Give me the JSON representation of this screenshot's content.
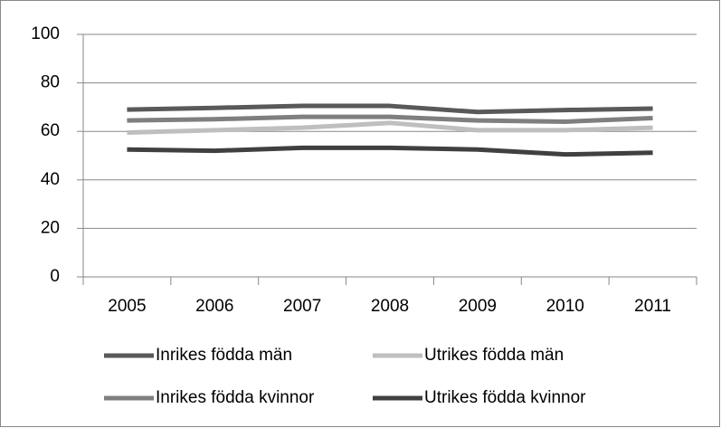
{
  "chart_data": {
    "type": "line",
    "categories": [
      "2005",
      "2006",
      "2007",
      "2008",
      "2009",
      "2010",
      "2011"
    ],
    "series": [
      {
        "name": "Inrikes födda män",
        "color": "#595959",
        "values": [
          69,
          69.7,
          70.5,
          70.5,
          68,
          68.8,
          69.4
        ]
      },
      {
        "name": "Utrikes födda män",
        "color": "#bfbfbf",
        "values": [
          59.5,
          60.5,
          61.5,
          63.5,
          60.5,
          60.5,
          61.5
        ]
      },
      {
        "name": "Inrikes födda kvinnor",
        "color": "#7f7f7f",
        "values": [
          64.5,
          65,
          66,
          66,
          64.5,
          64,
          65.5
        ]
      },
      {
        "name": "Utrikes födda kvinnor",
        "color": "#404040",
        "values": [
          52.5,
          52,
          53.2,
          53.2,
          52.5,
          50.5,
          51.2
        ]
      }
    ],
    "ylim": [
      0,
      100
    ],
    "yticks": [
      0,
      20,
      40,
      60,
      80,
      100
    ],
    "grid": true,
    "legend": "bottom"
  }
}
